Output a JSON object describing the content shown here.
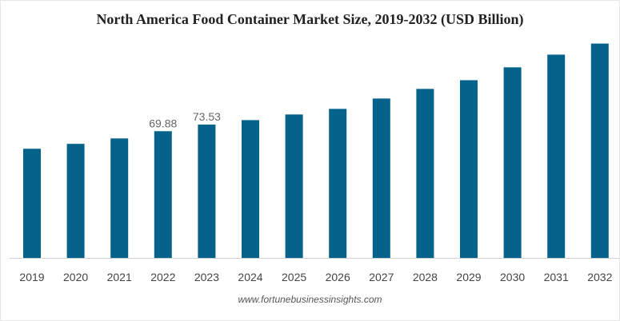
{
  "chart_data": {
    "type": "bar",
    "title": "North America Food Container Market Size, 2019-2032 (USD Billion)",
    "xlabel": "",
    "ylabel": "",
    "categories": [
      "2019",
      "2020",
      "2021",
      "2022",
      "2023",
      "2024",
      "2025",
      "2026",
      "2027",
      "2028",
      "2029",
      "2030",
      "2031",
      "2032"
    ],
    "values": [
      60.2,
      62.9,
      65.9,
      69.88,
      73.53,
      76.0,
      79.1,
      82.2,
      87.9,
      93.2,
      98.0,
      105.1,
      112.1,
      118.2
    ],
    "data_labels": {
      "2022": "69.88",
      "2023": "73.53"
    },
    "ylim": [
      0,
      125
    ],
    "grid": false,
    "bar_color": "#05628a",
    "source": "www.fortunebusinessinsights.com"
  }
}
